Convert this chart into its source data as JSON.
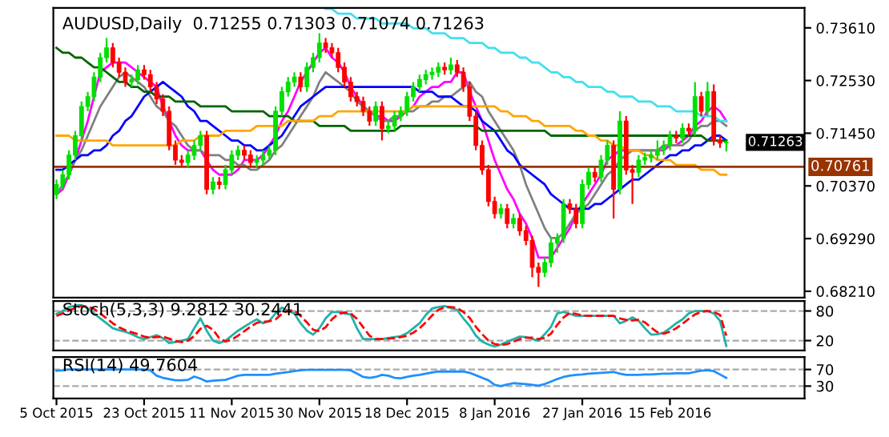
{
  "chart_data": [
    {
      "type": "candlestick",
      "title": "AUDUSD,Daily  0.71255 0.71303 0.71074 0.71263",
      "ohlc": [
        [
          0.702,
          0.705,
          0.701,
          0.704
        ],
        [
          0.704,
          0.707,
          0.703,
          0.706
        ],
        [
          0.706,
          0.711,
          0.705,
          0.71
        ],
        [
          0.71,
          0.715,
          0.709,
          0.714
        ],
        [
          0.714,
          0.721,
          0.713,
          0.72
        ],
        [
          0.72,
          0.723,
          0.719,
          0.722
        ],
        [
          0.722,
          0.727,
          0.721,
          0.726
        ],
        [
          0.726,
          0.731,
          0.725,
          0.73
        ],
        [
          0.73,
          0.734,
          0.729,
          0.732
        ],
        [
          0.732,
          0.733,
          0.728,
          0.729
        ],
        [
          0.729,
          0.73,
          0.726,
          0.727
        ],
        [
          0.727,
          0.728,
          0.724,
          0.725
        ],
        [
          0.725,
          0.7265,
          0.724,
          0.7255
        ],
        [
          0.7255,
          0.7285,
          0.7245,
          0.7275
        ],
        [
          0.7275,
          0.7285,
          0.7255,
          0.7265
        ],
        [
          0.7265,
          0.7275,
          0.723,
          0.724
        ],
        [
          0.724,
          0.725,
          0.7205,
          0.7215
        ],
        [
          0.7215,
          0.7225,
          0.718,
          0.719
        ],
        [
          0.719,
          0.72,
          0.711,
          0.712
        ],
        [
          0.712,
          0.713,
          0.708,
          0.709
        ],
        [
          0.709,
          0.71,
          0.7075,
          0.7085
        ],
        [
          0.7085,
          0.711,
          0.7075,
          0.71
        ],
        [
          0.71,
          0.713,
          0.709,
          0.712
        ],
        [
          0.712,
          0.715,
          0.711,
          0.714
        ],
        [
          0.714,
          0.715,
          0.702,
          0.703
        ],
        [
          0.703,
          0.7055,
          0.702,
          0.7045
        ],
        [
          0.7045,
          0.7055,
          0.703,
          0.704
        ],
        [
          0.704,
          0.708,
          0.703,
          0.707
        ],
        [
          0.707,
          0.711,
          0.706,
          0.71
        ],
        [
          0.71,
          0.712,
          0.709,
          0.711
        ],
        [
          0.711,
          0.712,
          0.709,
          0.71
        ],
        [
          0.71,
          0.711,
          0.7075,
          0.7085
        ],
        [
          0.7085,
          0.71,
          0.7075,
          0.709
        ],
        [
          0.709,
          0.711,
          0.708,
          0.71
        ],
        [
          0.71,
          0.712,
          0.709,
          0.711
        ],
        [
          0.711,
          0.72,
          0.71,
          0.719
        ],
        [
          0.719,
          0.724,
          0.718,
          0.723
        ],
        [
          0.723,
          0.726,
          0.722,
          0.725
        ],
        [
          0.725,
          0.727,
          0.724,
          0.726
        ],
        [
          0.726,
          0.727,
          0.723,
          0.724
        ],
        [
          0.724,
          0.729,
          0.723,
          0.728
        ],
        [
          0.728,
          0.731,
          0.727,
          0.73
        ],
        [
          0.73,
          0.735,
          0.729,
          0.733
        ],
        [
          0.733,
          0.734,
          0.731,
          0.732
        ],
        [
          0.732,
          0.733,
          0.73,
          0.731
        ],
        [
          0.731,
          0.732,
          0.727,
          0.728
        ],
        [
          0.728,
          0.729,
          0.724,
          0.725
        ],
        [
          0.725,
          0.726,
          0.721,
          0.722
        ],
        [
          0.722,
          0.723,
          0.72,
          0.721
        ],
        [
          0.721,
          0.722,
          0.718,
          0.719
        ],
        [
          0.719,
          0.72,
          0.716,
          0.717
        ],
        [
          0.717,
          0.721,
          0.716,
          0.72
        ],
        [
          0.72,
          0.721,
          0.713,
          0.7155
        ],
        [
          0.7155,
          0.717,
          0.7145,
          0.716
        ],
        [
          0.716,
          0.719,
          0.715,
          0.718
        ],
        [
          0.718,
          0.72,
          0.717,
          0.719
        ],
        [
          0.719,
          0.723,
          0.718,
          0.722
        ],
        [
          0.722,
          0.725,
          0.721,
          0.724
        ],
        [
          0.724,
          0.7265,
          0.723,
          0.7255
        ],
        [
          0.7255,
          0.7275,
          0.7245,
          0.7265
        ],
        [
          0.7265,
          0.728,
          0.7255,
          0.727
        ],
        [
          0.727,
          0.729,
          0.726,
          0.728
        ],
        [
          0.728,
          0.729,
          0.7265,
          0.7275
        ],
        [
          0.7275,
          0.73,
          0.7265,
          0.7285
        ],
        [
          0.7285,
          0.7295,
          0.726,
          0.727
        ],
        [
          0.727,
          0.728,
          0.723,
          0.724
        ],
        [
          0.724,
          0.725,
          0.717,
          0.718
        ],
        [
          0.718,
          0.719,
          0.711,
          0.712
        ],
        [
          0.712,
          0.713,
          0.706,
          0.707
        ],
        [
          0.707,
          0.708,
          0.6995,
          0.7005
        ],
        [
          0.7005,
          0.7015,
          0.697,
          0.698
        ],
        [
          0.698,
          0.7,
          0.697,
          0.699
        ],
        [
          0.699,
          0.7,
          0.695,
          0.696
        ],
        [
          0.696,
          0.698,
          0.695,
          0.697
        ],
        [
          0.697,
          0.698,
          0.6935,
          0.6945
        ],
        [
          0.6945,
          0.6955,
          0.6915,
          0.6925
        ],
        [
          0.6925,
          0.6935,
          0.685,
          0.687
        ],
        [
          0.687,
          0.688,
          0.683,
          0.686
        ],
        [
          0.686,
          0.689,
          0.685,
          0.688
        ],
        [
          0.688,
          0.693,
          0.687,
          0.692
        ],
        [
          0.692,
          0.694,
          0.69,
          0.693
        ],
        [
          0.693,
          0.701,
          0.692,
          0.7
        ],
        [
          0.7,
          0.701,
          0.698,
          0.699
        ],
        [
          0.699,
          0.7,
          0.695,
          0.696
        ],
        [
          0.696,
          0.705,
          0.695,
          0.704
        ],
        [
          0.704,
          0.7075,
          0.703,
          0.7065
        ],
        [
          0.7065,
          0.7075,
          0.7045,
          0.7055
        ],
        [
          0.7055,
          0.71,
          0.7045,
          0.709
        ],
        [
          0.709,
          0.713,
          0.708,
          0.712
        ],
        [
          0.712,
          0.713,
          0.697,
          0.703
        ],
        [
          0.703,
          0.719,
          0.702,
          0.717
        ],
        [
          0.717,
          0.718,
          0.706,
          0.707
        ],
        [
          0.707,
          0.708,
          0.7,
          0.7065
        ],
        [
          0.7065,
          0.71,
          0.7055,
          0.709
        ],
        [
          0.709,
          0.7105,
          0.708,
          0.7095
        ],
        [
          0.7095,
          0.711,
          0.7085,
          0.71
        ],
        [
          0.71,
          0.713,
          0.709,
          0.711
        ],
        [
          0.711,
          0.713,
          0.71,
          0.712
        ],
        [
          0.712,
          0.715,
          0.711,
          0.714
        ],
        [
          0.714,
          0.715,
          0.7125,
          0.7135
        ],
        [
          0.7135,
          0.7165,
          0.7125,
          0.7155
        ],
        [
          0.7155,
          0.7165,
          0.714,
          0.715
        ],
        [
          0.715,
          0.725,
          0.714,
          0.722
        ],
        [
          0.722,
          0.723,
          0.718,
          0.719
        ],
        [
          0.719,
          0.725,
          0.718,
          0.723
        ],
        [
          0.723,
          0.7245,
          0.712,
          0.713
        ],
        [
          0.713,
          0.714,
          0.7115,
          0.7125
        ],
        [
          0.71255,
          0.71303,
          0.71074,
          0.71263
        ]
      ],
      "colors": [
        "#00e000",
        "#00e000",
        "#00e000",
        "#00e000",
        "#00e000",
        "#00e000",
        "#00e000",
        "#00e000",
        "#00e000",
        "#ff0000",
        "#ff0000",
        "#ff0000",
        "#00e000",
        "#00e000",
        "#ff0000",
        "#ff0000",
        "#ff0000",
        "#ff0000",
        "#ff0000",
        "#ff0000",
        "#ff0000",
        "#00e000",
        "#00e000",
        "#00e000",
        "#ff0000",
        "#00e000",
        "#ff0000",
        "#00e000",
        "#00e000",
        "#00e000",
        "#ff0000",
        "#ff0000",
        "#00e000",
        "#00e000",
        "#00e000",
        "#00e000",
        "#00e000",
        "#00e000",
        "#00e000",
        "#ff0000",
        "#00e000",
        "#00e000",
        "#00e000",
        "#ff0000",
        "#ff0000",
        "#ff0000",
        "#ff0000",
        "#ff0000",
        "#ff0000",
        "#ff0000",
        "#ff0000",
        "#00e000",
        "#ff0000",
        "#00e000",
        "#00e000",
        "#00e000",
        "#00e000",
        "#00e000",
        "#00e000",
        "#00e000",
        "#00e000",
        "#00e000",
        "#ff0000",
        "#00e000",
        "#ff0000",
        "#ff0000",
        "#ff0000",
        "#ff0000",
        "#ff0000",
        "#ff0000",
        "#ff0000",
        "#00e000",
        "#ff0000",
        "#00e000",
        "#ff0000",
        "#ff0000",
        "#ff0000",
        "#ff0000",
        "#00e000",
        "#00e000",
        "#00e000",
        "#00e000",
        "#ff0000",
        "#ff0000",
        "#00e000",
        "#00e000",
        "#ff0000",
        "#00e000",
        "#00e000",
        "#ff0000",
        "#00e000",
        "#ff0000",
        "#ff0000",
        "#00e000",
        "#00e000",
        "#00e000",
        "#00e000",
        "#00e000",
        "#00e000",
        "#ff0000",
        "#00e000",
        "#ff0000",
        "#00e000",
        "#ff0000",
        "#00e000",
        "#ff0000",
        "#ff0000",
        "#00e000"
      ],
      "series": [
        {
          "type": "line",
          "color": "#ff00ff",
          "values": [
            0.702,
            0.703,
            0.706,
            0.709,
            0.713,
            0.717,
            0.722,
            0.727,
            0.728,
            0.729,
            0.729,
            0.729,
            0.728,
            0.727,
            0.726,
            0.725,
            0.724,
            0.72,
            0.717,
            0.714,
            0.712,
            0.711,
            0.711,
            0.711,
            0.709,
            0.707,
            0.706,
            0.706,
            0.706,
            0.707,
            0.709,
            0.709,
            0.709,
            0.71,
            0.712,
            0.714,
            0.717,
            0.719,
            0.722,
            0.725,
            0.727,
            0.729,
            0.731,
            0.732,
            0.73,
            0.729,
            0.727,
            0.724,
            0.722,
            0.72,
            0.719,
            0.718,
            0.718,
            0.717,
            0.717,
            0.718,
            0.719,
            0.72,
            0.722,
            0.723,
            0.724,
            0.724,
            0.725,
            0.725,
            0.727,
            0.727,
            0.723,
            0.72,
            0.717,
            0.713,
            0.709,
            0.706,
            0.703,
            0.701,
            0.698,
            0.696,
            0.693,
            0.689,
            0.689,
            0.689,
            0.691,
            0.693,
            0.695,
            0.698,
            0.7,
            0.702,
            0.704,
            0.706,
            0.709,
            0.71,
            0.711,
            0.711,
            0.711,
            0.711,
            0.711,
            0.711,
            0.711,
            0.711,
            0.712,
            0.712,
            0.713,
            0.714,
            0.716,
            0.717,
            0.719,
            0.72,
            0.719,
            0.717
          ]
        },
        {
          "type": "line",
          "color": "#808080",
          "values": [
            0.702,
            0.704,
            0.706,
            0.709,
            0.711,
            0.714,
            0.717,
            0.72,
            0.722,
            0.724,
            0.726,
            0.727,
            0.726,
            0.725,
            0.724,
            0.722,
            0.72,
            0.719,
            0.717,
            0.716,
            0.714,
            0.712,
            0.711,
            0.711,
            0.71,
            0.71,
            0.71,
            0.709,
            0.709,
            0.708,
            0.708,
            0.707,
            0.707,
            0.708,
            0.709,
            0.711,
            0.712,
            0.714,
            0.716,
            0.718,
            0.72,
            0.722,
            0.725,
            0.727,
            0.726,
            0.725,
            0.724,
            0.723,
            0.721,
            0.72,
            0.719,
            0.718,
            0.717,
            0.717,
            0.718,
            0.718,
            0.719,
            0.719,
            0.72,
            0.72,
            0.721,
            0.721,
            0.722,
            0.722,
            0.723,
            0.724,
            0.725,
            0.723,
            0.722,
            0.719,
            0.717,
            0.715,
            0.713,
            0.711,
            0.708,
            0.704,
            0.701,
            0.698,
            0.695,
            0.693,
            0.693,
            0.694,
            0.696,
            0.698,
            0.699,
            0.7,
            0.702,
            0.704,
            0.706,
            0.707,
            0.709,
            0.71,
            0.711,
            0.711,
            0.711,
            0.711,
            0.711,
            0.712,
            0.712,
            0.712,
            0.712,
            0.713,
            0.715,
            0.716,
            0.716,
            0.717,
            0.717,
            0.716
          ]
        },
        {
          "type": "line",
          "color": "#0000ff",
          "values": [
            0.707,
            0.707,
            0.708,
            0.709,
            0.71,
            0.71,
            0.711,
            0.711,
            0.712,
            0.714,
            0.715,
            0.717,
            0.718,
            0.72,
            0.722,
            0.723,
            0.724,
            0.725,
            0.724,
            0.723,
            0.722,
            0.72,
            0.719,
            0.717,
            0.717,
            0.716,
            0.715,
            0.714,
            0.713,
            0.713,
            0.712,
            0.712,
            0.711,
            0.711,
            0.712,
            0.713,
            0.714,
            0.716,
            0.718,
            0.72,
            0.721,
            0.722,
            0.723,
            0.724,
            0.724,
            0.724,
            0.724,
            0.724,
            0.724,
            0.724,
            0.724,
            0.724,
            0.724,
            0.724,
            0.724,
            0.724,
            0.724,
            0.724,
            0.723,
            0.723,
            0.723,
            0.722,
            0.722,
            0.722,
            0.721,
            0.72,
            0.72,
            0.719,
            0.717,
            0.716,
            0.715,
            0.713,
            0.711,
            0.71,
            0.708,
            0.707,
            0.706,
            0.705,
            0.704,
            0.702,
            0.701,
            0.7,
            0.699,
            0.699,
            0.699,
            0.699,
            0.7,
            0.7,
            0.701,
            0.702,
            0.703,
            0.704,
            0.705,
            0.705,
            0.706,
            0.707,
            0.708,
            0.709,
            0.71,
            0.71,
            0.711,
            0.711,
            0.712,
            0.712,
            0.713,
            0.714,
            0.714,
            0.713
          ]
        },
        {
          "type": "line",
          "color": "#006400",
          "values": [
            0.732,
            0.731,
            0.731,
            0.73,
            0.73,
            0.729,
            0.728,
            0.728,
            0.727,
            0.726,
            0.725,
            0.725,
            0.724,
            0.724,
            0.723,
            0.723,
            0.722,
            0.722,
            0.722,
            0.721,
            0.721,
            0.721,
            0.721,
            0.72,
            0.72,
            0.72,
            0.72,
            0.72,
            0.719,
            0.719,
            0.719,
            0.719,
            0.719,
            0.719,
            0.718,
            0.718,
            0.718,
            0.718,
            0.717,
            0.717,
            0.717,
            0.717,
            0.716,
            0.716,
            0.716,
            0.716,
            0.716,
            0.715,
            0.715,
            0.715,
            0.715,
            0.715,
            0.715,
            0.715,
            0.715,
            0.716,
            0.716,
            0.716,
            0.716,
            0.716,
            0.716,
            0.716,
            0.716,
            0.716,
            0.716,
            0.716,
            0.716,
            0.716,
            0.715,
            0.715,
            0.715,
            0.715,
            0.715,
            0.715,
            0.715,
            0.715,
            0.715,
            0.715,
            0.715,
            0.714,
            0.714,
            0.714,
            0.714,
            0.714,
            0.714,
            0.714,
            0.714,
            0.714,
            0.714,
            0.714,
            0.714,
            0.714,
            0.714,
            0.714,
            0.714,
            0.714,
            0.714,
            0.714,
            0.714,
            0.714,
            0.714,
            0.714,
            0.714,
            0.714,
            0.713,
            0.713,
            0.713,
            0.713
          ]
        },
        {
          "type": "line",
          "color": "#ffa500",
          "values": [
            0.714,
            0.714,
            0.714,
            0.713,
            0.713,
            0.713,
            0.713,
            0.713,
            0.713,
            0.712,
            0.712,
            0.712,
            0.712,
            0.712,
            0.712,
            0.712,
            0.712,
            0.712,
            0.712,
            0.712,
            0.713,
            0.713,
            0.713,
            0.714,
            0.714,
            0.714,
            0.714,
            0.715,
            0.715,
            0.715,
            0.715,
            0.715,
            0.716,
            0.716,
            0.716,
            0.716,
            0.716,
            0.717,
            0.717,
            0.717,
            0.717,
            0.717,
            0.718,
            0.718,
            0.718,
            0.719,
            0.719,
            0.719,
            0.719,
            0.719,
            0.719,
            0.719,
            0.719,
            0.719,
            0.719,
            0.719,
            0.719,
            0.72,
            0.72,
            0.72,
            0.72,
            0.72,
            0.72,
            0.72,
            0.72,
            0.72,
            0.72,
            0.72,
            0.72,
            0.72,
            0.72,
            0.719,
            0.719,
            0.718,
            0.718,
            0.718,
            0.717,
            0.717,
            0.716,
            0.716,
            0.716,
            0.716,
            0.716,
            0.715,
            0.715,
            0.714,
            0.714,
            0.713,
            0.713,
            0.712,
            0.712,
            0.711,
            0.711,
            0.711,
            0.71,
            0.71,
            0.709,
            0.709,
            0.709,
            0.708,
            0.708,
            0.708,
            0.708,
            0.707,
            0.707,
            0.707,
            0.706,
            0.706
          ]
        },
        {
          "type": "line",
          "color": "#40e0f0",
          "values": [
            null,
            null,
            null,
            null,
            null,
            null,
            null,
            null,
            null,
            null,
            null,
            null,
            null,
            null,
            null,
            null,
            null,
            null,
            null,
            null,
            null,
            null,
            null,
            null,
            null,
            null,
            null,
            null,
            null,
            null,
            null,
            null,
            null,
            null,
            null,
            null,
            null,
            null,
            null,
            null,
            null,
            null,
            null,
            0.74,
            0.74,
            0.739,
            0.739,
            0.739,
            0.738,
            0.738,
            0.738,
            0.738,
            0.737,
            0.737,
            0.737,
            0.737,
            0.737,
            0.736,
            0.736,
            0.736,
            0.735,
            0.735,
            0.735,
            0.734,
            0.734,
            0.734,
            0.733,
            0.733,
            0.733,
            0.732,
            0.732,
            0.731,
            0.731,
            0.731,
            0.73,
            0.73,
            0.729,
            0.729,
            0.728,
            0.727,
            0.727,
            0.726,
            0.726,
            0.725,
            0.725,
            0.724,
            0.724,
            0.724,
            0.723,
            0.723,
            0.722,
            0.722,
            0.722,
            0.721,
            0.721,
            0.721,
            0.72,
            0.72,
            0.72,
            0.719,
            0.719,
            0.719,
            0.719,
            0.718,
            0.718,
            0.718,
            0.717,
            0.717
          ]
        }
      ],
      "ylim": [
        0.6808,
        0.7402
      ],
      "yticks": [
        {
          "value": 0.7361,
          "label": "0.73610"
        },
        {
          "value": 0.7253,
          "label": "0.72530"
        },
        {
          "value": 0.7145,
          "label": "0.71450"
        },
        {
          "value": 0.7037,
          "label": "0.70370"
        },
        {
          "value": 0.6929,
          "label": "0.69290"
        },
        {
          "value": 0.6821,
          "label": "0.68210"
        }
      ],
      "ref_lines": [
        {
          "axis": "y",
          "value": 0.70761,
          "label": "0.70761",
          "color": "#993300"
        }
      ],
      "annotations": [
        "0.71263"
      ],
      "tick_labels": "y"
    },
    {
      "type": "line",
      "title": "Stoch(5,3,3) 9.2812 30.2441",
      "series": [
        {
          "color": "#20b2aa",
          "values": [
            74,
            80,
            88,
            91,
            92,
            85,
            75,
            65,
            55,
            45,
            41,
            38,
            33,
            27,
            23,
            27,
            31,
            25,
            15,
            17,
            20,
            23,
            45,
            65,
            40,
            20,
            15,
            20,
            30,
            40,
            48,
            56,
            63,
            55,
            60,
            75,
            87,
            80,
            75,
            55,
            40,
            32,
            45,
            65,
            78,
            78,
            75,
            73,
            45,
            23,
            23,
            23,
            23,
            25,
            27,
            29,
            35,
            45,
            55,
            72,
            85,
            88,
            90,
            86,
            82,
            65,
            50,
            30,
            18,
            12,
            8,
            12,
            18,
            23,
            28,
            27,
            23,
            20,
            33,
            48,
            75,
            78,
            74,
            70,
            70,
            70,
            70,
            70,
            70,
            70,
            55,
            60,
            67,
            60,
            45,
            32,
            33,
            36,
            45,
            55,
            63,
            75,
            80,
            80,
            80,
            75,
            60,
            9
          ]
        },
        {
          "color": "#ff0000",
          "line_style": "dashed",
          "values": [
            70,
            75,
            81,
            86,
            90,
            89,
            84,
            75,
            65,
            55,
            47,
            41,
            37,
            33,
            28,
            26,
            27,
            28,
            24,
            19,
            17,
            20,
            29,
            44,
            50,
            42,
            25,
            18,
            22,
            30,
            39,
            48,
            56,
            58,
            59,
            63,
            74,
            81,
            81,
            70,
            57,
            42,
            39,
            47,
            63,
            74,
            77,
            75,
            64,
            47,
            30,
            23,
            23,
            24,
            25,
            27,
            30,
            36,
            45,
            57,
            71,
            82,
            88,
            88,
            86,
            78,
            66,
            48,
            33,
            20,
            13,
            11,
            13,
            18,
            23,
            26,
            26,
            23,
            25,
            34,
            52,
            67,
            76,
            74,
            71,
            70,
            70,
            70,
            70,
            70,
            65,
            62,
            61,
            62,
            57,
            46,
            37,
            34,
            38,
            45,
            54,
            64,
            73,
            78,
            80,
            78,
            72,
            30
          ]
        }
      ],
      "ylim": [
        0,
        100
      ],
      "yticks": [
        20,
        80
      ],
      "grid": "y",
      "tick_labels": "y"
    },
    {
      "type": "line",
      "title": "RSI(14) 49.7604",
      "categories": [
        "5 Oct 2015",
        null,
        null,
        null,
        null,
        null,
        null,
        null,
        null,
        null,
        null,
        null,
        null,
        null,
        "23 Oct 2015",
        null,
        null,
        null,
        null,
        null,
        null,
        null,
        null,
        null,
        null,
        null,
        null,
        null,
        "11 Nov 2015",
        null,
        null,
        null,
        null,
        null,
        null,
        null,
        null,
        null,
        null,
        null,
        null,
        null,
        "30 Nov 2015",
        null,
        null,
        null,
        null,
        null,
        null,
        null,
        null,
        null,
        null,
        null,
        null,
        null,
        "18 Dec 2015",
        null,
        null,
        null,
        null,
        null,
        null,
        null,
        null,
        null,
        null,
        null,
        null,
        null,
        "8 Jan 2016",
        null,
        null,
        null,
        null,
        null,
        null,
        null,
        null,
        null,
        null,
        null,
        null,
        null,
        "27 Jan 2016",
        null,
        null,
        null,
        null,
        null,
        null,
        null,
        null,
        null,
        null,
        null,
        null,
        null,
        "15 Feb 2016",
        null,
        null,
        null,
        null,
        null,
        null,
        null,
        null,
        null
      ],
      "series": [
        {
          "color": "#1e90ff",
          "values": [
            67,
            68,
            70,
            70,
            70,
            70,
            70,
            70,
            70,
            70,
            70,
            70,
            70,
            70,
            70,
            68,
            55,
            50,
            47,
            44,
            44,
            45,
            53,
            48,
            41,
            43,
            44,
            45,
            50,
            55,
            57,
            57,
            57,
            57,
            57,
            60,
            62,
            64,
            66,
            68,
            69,
            69,
            69,
            69,
            69,
            69,
            69,
            68,
            60,
            52,
            50,
            52,
            57,
            55,
            50,
            49,
            52,
            55,
            57,
            60,
            63,
            65,
            65,
            65,
            65,
            65,
            62,
            56,
            50,
            44,
            33,
            30,
            34,
            37,
            36,
            35,
            33,
            31,
            35,
            41,
            47,
            52,
            55,
            57,
            58,
            60,
            61,
            62,
            63,
            64,
            60,
            57,
            57,
            57,
            58,
            58,
            59,
            60,
            60,
            61,
            61,
            61,
            64,
            67,
            68,
            66,
            58,
            50
          ]
        }
      ],
      "ylim": [
        0,
        100
      ],
      "yticks": [
        30,
        70
      ],
      "grid": "y"
    }
  ]
}
